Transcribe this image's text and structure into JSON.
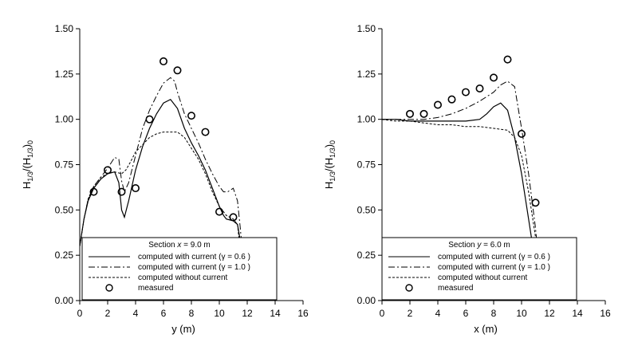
{
  "chart_data": [
    {
      "type": "line",
      "xlabel": "y (m)",
      "ylabel": "H1/3/(H1/3)0",
      "ylabel_parts": {
        "h": "H",
        "sub": "1/3",
        "sep": "/(H",
        "sub2": "1/3",
        "close": ")",
        "sub0": "0"
      },
      "xlim": [
        0,
        16
      ],
      "ylim": [
        0,
        1.5
      ],
      "xticks": [
        "0",
        "2",
        "4",
        "6",
        "8",
        "10",
        "12",
        "14",
        "16"
      ],
      "yticks": [
        "0.00",
        "0.25",
        "0.50",
        "0.75",
        "1.00",
        "1.25",
        "1.50"
      ],
      "legend": {
        "title": "Section x = 9.0 m",
        "title_parts": {
          "pre": "Section ",
          "var": "x",
          "post": " = 9.0 m"
        },
        "entries": [
          "computed with current (γ = 0.6 )",
          "computed with current (γ = 1.0 )",
          "computed without current",
          "measured"
        ]
      },
      "series": [
        {
          "name": "computed with current (γ = 0.6 )",
          "style": "solid",
          "x": [
            0,
            0.3,
            0.6,
            1,
            1.5,
            2,
            2.5,
            2.8,
            3,
            3.2,
            3.5,
            4,
            4.5,
            5,
            5.5,
            6,
            6.5,
            7,
            7.5,
            8,
            8.5,
            9,
            9.5,
            10,
            10.3,
            10.5,
            11,
            11.3,
            11.5,
            11.7,
            12
          ],
          "y": [
            0.3,
            0.45,
            0.55,
            0.62,
            0.67,
            0.7,
            0.71,
            0.65,
            0.5,
            0.46,
            0.55,
            0.72,
            0.85,
            0.95,
            1.03,
            1.09,
            1.11,
            1.06,
            0.95,
            0.87,
            0.8,
            0.72,
            0.62,
            0.52,
            0.47,
            0.45,
            0.44,
            0.42,
            0.33,
            0.18,
            0.0
          ]
        },
        {
          "name": "computed with current (γ = 1.0 )",
          "style": "dashdot",
          "x": [
            0,
            0.3,
            0.6,
            1,
            1.5,
            2,
            2.5,
            2.8,
            3,
            3.2,
            3.5,
            4,
            4.5,
            5,
            5.5,
            6,
            6.5,
            6.8,
            7,
            7.5,
            8,
            8.5,
            9,
            9.5,
            10,
            10.3,
            10.6,
            11,
            11.3,
            11.5,
            11.8,
            12
          ],
          "y": [
            0.3,
            0.45,
            0.56,
            0.63,
            0.68,
            0.73,
            0.79,
            0.78,
            0.66,
            0.6,
            0.65,
            0.8,
            0.95,
            1.05,
            1.13,
            1.2,
            1.23,
            1.21,
            1.15,
            1.03,
            0.95,
            0.87,
            0.78,
            0.7,
            0.63,
            0.6,
            0.6,
            0.62,
            0.55,
            0.4,
            0.15,
            0.0
          ]
        },
        {
          "name": "computed without current",
          "style": "dashed",
          "x": [
            0,
            0.3,
            0.6,
            1,
            1.5,
            2,
            2.5,
            3,
            3.3,
            3.6,
            4,
            4.5,
            5,
            5.5,
            6,
            6.5,
            7,
            7.5,
            8,
            8.5,
            9,
            9.5,
            10,
            10.5,
            11,
            11.3,
            11.6,
            12
          ],
          "y": [
            0.3,
            0.45,
            0.56,
            0.63,
            0.68,
            0.7,
            0.71,
            0.7,
            0.72,
            0.76,
            0.82,
            0.86,
            0.9,
            0.92,
            0.93,
            0.93,
            0.93,
            0.9,
            0.84,
            0.78,
            0.7,
            0.6,
            0.52,
            0.47,
            0.45,
            0.42,
            0.2,
            0.0
          ]
        },
        {
          "name": "measured",
          "style": "markers",
          "x": [
            1,
            2,
            3,
            4,
            5,
            6,
            7,
            8,
            9,
            10,
            11
          ],
          "y": [
            0.6,
            0.72,
            0.6,
            0.62,
            1.0,
            1.32,
            1.27,
            1.02,
            0.93,
            0.49,
            0.46
          ]
        }
      ]
    },
    {
      "type": "line",
      "xlabel": "x (m)",
      "ylabel": "H1/3/(H1/3)0",
      "ylabel_parts": {
        "h": "H",
        "sub": "1/3",
        "sep": "/(H",
        "sub2": "1/3",
        "close": ")",
        "sub0": "0"
      },
      "xlim": [
        0,
        16
      ],
      "ylim": [
        0,
        1.5
      ],
      "xticks": [
        "0",
        "2",
        "4",
        "6",
        "8",
        "10",
        "12",
        "14",
        "16"
      ],
      "yticks": [
        "0.00",
        "0.25",
        "0.50",
        "0.75",
        "1.00",
        "1.25",
        "1.50"
      ],
      "legend": {
        "title": "Section y = 6.0 m",
        "title_parts": {
          "pre": "Section ",
          "var": "y",
          "post": " = 6.0 m"
        },
        "entries": [
          "computed with current (γ = 0.6 )",
          "computed with current (γ = 1.0 )",
          "computed without current",
          "measured"
        ]
      },
      "series": [
        {
          "name": "computed with current (γ = 0.6 )",
          "style": "solid",
          "x": [
            0,
            1,
            2,
            3,
            4,
            5,
            6,
            7,
            7.5,
            8,
            8.5,
            9,
            9.5,
            10,
            10.5,
            11,
            11.3,
            11.5
          ],
          "y": [
            1.0,
            1.0,
            0.99,
            0.99,
            0.99,
            0.99,
            0.99,
            1.0,
            1.03,
            1.07,
            1.09,
            1.05,
            0.9,
            0.7,
            0.45,
            0.2,
            0.05,
            0.0
          ]
        },
        {
          "name": "computed with current (γ = 1.0 )",
          "style": "dashdot",
          "x": [
            0,
            1,
            2,
            3,
            4,
            5,
            6,
            7,
            8,
            8.5,
            9,
            9.5,
            10,
            10.5,
            11,
            11.3,
            11.6
          ],
          "y": [
            1.0,
            1.0,
            1.0,
            1.0,
            1.01,
            1.03,
            1.06,
            1.1,
            1.15,
            1.19,
            1.21,
            1.18,
            0.95,
            0.7,
            0.4,
            0.15,
            0.0
          ]
        },
        {
          "name": "computed without current",
          "style": "dashed",
          "x": [
            0,
            1,
            2,
            3,
            4,
            5,
            6,
            7,
            8,
            9,
            9.5,
            10,
            10.5,
            11,
            11.3,
            11.6
          ],
          "y": [
            1.0,
            0.99,
            0.99,
            0.98,
            0.97,
            0.97,
            0.96,
            0.96,
            0.95,
            0.94,
            0.9,
            0.8,
            0.6,
            0.35,
            0.15,
            0.0
          ]
        },
        {
          "name": "measured",
          "style": "markers",
          "x": [
            2,
            3,
            4,
            5,
            6,
            7,
            8,
            9,
            10,
            11
          ],
          "y": [
            1.03,
            1.03,
            1.08,
            1.11,
            1.15,
            1.17,
            1.23,
            1.33,
            0.92,
            0.54
          ]
        }
      ]
    }
  ]
}
